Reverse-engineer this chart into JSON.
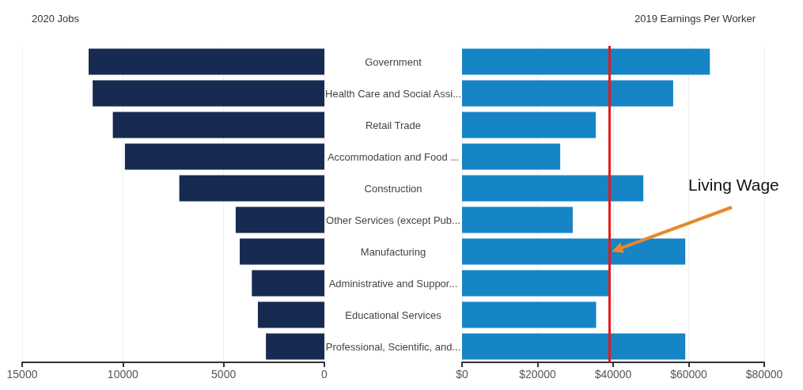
{
  "chart_data": [
    {
      "type": "bar",
      "orientation": "horizontal",
      "title": "2020 Jobs",
      "categories": [
        "Government",
        "Health Care and Social Assi...",
        "Retail Trade",
        "Accommodation and Food ...",
        "Construction",
        "Other Services (except Pub...",
        "Manufacturing",
        "Administrative and Suppor...",
        "Educational Services",
        "Professional, Scientific, and..."
      ],
      "values": [
        11700,
        11500,
        10500,
        9900,
        7200,
        4400,
        4200,
        3600,
        3300,
        2900
      ],
      "color": "#172a52",
      "xlim": [
        15000,
        0
      ],
      "xticks": [
        15000,
        10000,
        5000,
        0
      ],
      "grid": "x"
    },
    {
      "type": "bar",
      "orientation": "horizontal",
      "title": "2019 Earnings Per Worker",
      "categories": [
        null,
        null,
        null,
        null,
        null,
        null,
        null,
        null,
        null,
        null
      ],
      "values": [
        65600,
        55900,
        35400,
        26000,
        48000,
        29300,
        59100,
        38800,
        35500,
        59100
      ],
      "color": "#1585c6",
      "xlim": [
        0,
        80000
      ],
      "xticks": [
        {
          "value": 0,
          "label": "$0"
        },
        {
          "value": 20000,
          "label": "$20000"
        },
        {
          "value": 40000,
          "label": "$40000"
        },
        {
          "value": 60000,
          "label": "$60000"
        },
        {
          "value": 80000,
          "label": "$80000"
        }
      ],
      "grid": "x",
      "tick_labels": "x",
      "ref_lines": [
        {
          "axis": "x",
          "value": 39000,
          "color": "#e41b1b"
        }
      ],
      "annotations": [
        "Living Wage"
      ]
    }
  ]
}
